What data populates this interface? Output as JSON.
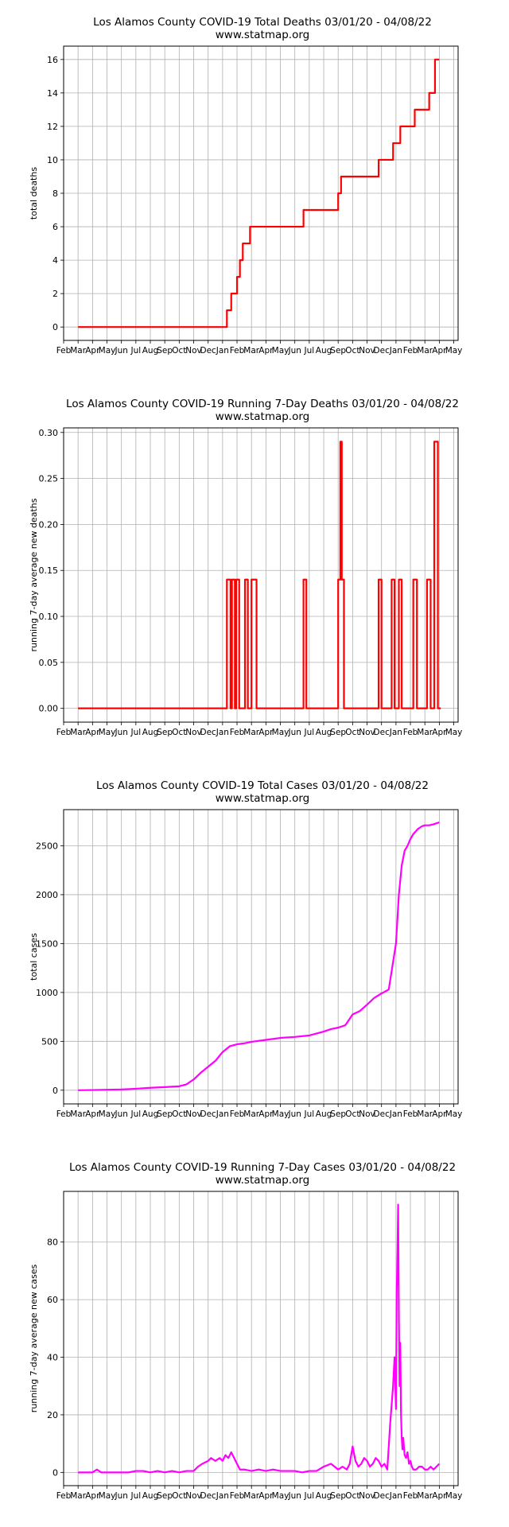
{
  "chart_data": [
    {
      "type": "line",
      "title": "Los Alamos County COVID-19 Total Deaths 03/01/20 - 04/08/22",
      "subtitle": "www.statmap.org",
      "xlabel": "",
      "ylabel": "total deaths",
      "grid": true,
      "color": "#ff0000",
      "month_labels": [
        "Feb",
        "Mar",
        "Apr",
        "May",
        "Jun",
        "Jul",
        "Aug",
        "Sep",
        "Oct",
        "Nov",
        "Dec",
        "Jan",
        "Feb",
        "Mar",
        "Apr",
        "May",
        "Jun",
        "Jul",
        "Aug",
        "Sep",
        "Oct",
        "Nov",
        "Dec",
        "Jan",
        "Feb",
        "Mar",
        "Apr",
        "May"
      ],
      "xlim": [
        0,
        27.3
      ],
      "ylim": [
        -0.8,
        16.8
      ],
      "yticks": [
        0,
        2,
        4,
        6,
        8,
        10,
        12,
        14,
        16
      ],
      "ytick_labels": [
        "0",
        "2",
        "4",
        "6",
        "8",
        "10",
        "12",
        "14",
        "16"
      ],
      "x": [
        1.0,
        11.3,
        11.3,
        11.6,
        11.6,
        12.0,
        12.0,
        12.2,
        12.2,
        12.4,
        12.4,
        12.9,
        12.9,
        13.3,
        13.3,
        16.6,
        16.6,
        19.0,
        19.0,
        19.2,
        19.2,
        21.8,
        21.8,
        22.8,
        22.8,
        23.3,
        23.3,
        24.3,
        24.3,
        25.3,
        25.3,
        25.7,
        25.7,
        26.0
      ],
      "y": [
        0,
        0,
        1,
        1,
        2,
        2,
        3,
        3,
        4,
        4,
        5,
        5,
        6,
        6,
        6,
        6,
        7,
        7,
        8,
        8,
        9,
        9,
        10,
        10,
        11,
        11,
        12,
        12,
        13,
        13,
        14,
        14,
        16,
        16
      ]
    },
    {
      "type": "line",
      "title": "Los Alamos County COVID-19 Running 7-Day Deaths 03/01/20 - 04/08/22",
      "subtitle": "www.statmap.org",
      "xlabel": "",
      "ylabel": "running 7-day average new deaths",
      "grid": true,
      "color": "#ff0000",
      "month_labels": [
        "Feb",
        "Mar",
        "Apr",
        "May",
        "Jun",
        "Jul",
        "Aug",
        "Sep",
        "Oct",
        "Nov",
        "Dec",
        "Jan",
        "Feb",
        "Mar",
        "Apr",
        "May",
        "Jun",
        "Jul",
        "Aug",
        "Sep",
        "Oct",
        "Nov",
        "Dec",
        "Jan",
        "Feb",
        "Mar",
        "Apr",
        "May"
      ],
      "xlim": [
        0,
        27.3
      ],
      "ylim": [
        -0.015,
        0.305
      ],
      "yticks": [
        0,
        0.05,
        0.1,
        0.15,
        0.2,
        0.25,
        0.3
      ],
      "ytick_labels": [
        "0.00",
        "0.05",
        "0.10",
        "0.15",
        "0.20",
        "0.25",
        "0.30"
      ],
      "x": [
        1.0,
        11.3,
        11.3,
        11.55,
        11.55,
        11.65,
        11.65,
        11.85,
        11.85,
        11.95,
        11.95,
        12.15,
        12.15,
        12.55,
        12.55,
        12.75,
        12.75,
        13.0,
        13.0,
        13.35,
        13.35,
        13.55,
        13.55,
        16.6,
        16.6,
        16.8,
        16.8,
        19.0,
        19.0,
        19.15,
        19.15,
        19.25,
        19.25,
        19.4,
        19.4,
        21.8,
        21.8,
        22.0,
        22.0,
        22.7,
        22.7,
        22.9,
        22.9,
        23.2,
        23.2,
        23.4,
        23.4,
        24.2,
        24.2,
        24.45,
        24.45,
        25.15,
        25.15,
        25.4,
        25.4,
        25.65,
        25.65,
        25.9,
        25.9,
        26.1
      ],
      "y": [
        0,
        0,
        0.14,
        0.14,
        0,
        0,
        0.14,
        0.14,
        0,
        0,
        0.14,
        0.14,
        0,
        0,
        0.14,
        0.14,
        0,
        0,
        0.14,
        0.14,
        0,
        0,
        0,
        0,
        0.14,
        0.14,
        0,
        0,
        0.14,
        0.14,
        0.29,
        0.29,
        0.14,
        0.14,
        0,
        0,
        0.14,
        0.14,
        0,
        0,
        0.14,
        0.14,
        0,
        0,
        0.14,
        0.14,
        0,
        0,
        0.14,
        0.14,
        0,
        0,
        0.14,
        0.14,
        0,
        0,
        0.29,
        0.29,
        0,
        0
      ]
    },
    {
      "type": "line",
      "title": "Los Alamos County COVID-19 Total Cases 03/01/20 - 04/08/22",
      "subtitle": "www.statmap.org",
      "xlabel": "",
      "ylabel": "total cases",
      "grid": true,
      "color": "#ff00ff",
      "month_labels": [
        "Feb",
        "Mar",
        "Apr",
        "May",
        "Jun",
        "Jul",
        "Aug",
        "Sep",
        "Oct",
        "Nov",
        "Dec",
        "Jan",
        "Feb",
        "Mar",
        "Apr",
        "May",
        "Jun",
        "Jul",
        "Aug",
        "Sep",
        "Oct",
        "Nov",
        "Dec",
        "Jan",
        "Feb",
        "Mar",
        "Apr",
        "May"
      ],
      "xlim": [
        0,
        27.3
      ],
      "ylim": [
        -140,
        2870
      ],
      "yticks": [
        0,
        500,
        1000,
        1500,
        2000,
        2500
      ],
      "ytick_labels": [
        "0",
        "500",
        "1000",
        "1500",
        "2000",
        "2500"
      ],
      "x": [
        1.0,
        2.0,
        3.0,
        4.0,
        5.0,
        6.0,
        7.0,
        8.0,
        8.5,
        9.0,
        9.5,
        10.0,
        10.5,
        11.0,
        11.5,
        12.0,
        12.5,
        13.0,
        14.0,
        15.0,
        16.0,
        17.0,
        18.0,
        18.5,
        19.0,
        19.5,
        20.0,
        20.5,
        21.0,
        21.5,
        22.0,
        22.5,
        23.0,
        23.2,
        23.4,
        23.6,
        23.8,
        24.0,
        24.2,
        24.5,
        24.8,
        25.0,
        25.3,
        25.6,
        25.8,
        26.0
      ],
      "y": [
        0,
        2,
        5,
        8,
        15,
        25,
        32,
        40,
        60,
        110,
        180,
        240,
        300,
        390,
        450,
        470,
        480,
        495,
        515,
        535,
        545,
        560,
        600,
        625,
        640,
        665,
        775,
        810,
        875,
        945,
        990,
        1030,
        1500,
        2000,
        2300,
        2450,
        2500,
        2570,
        2620,
        2670,
        2700,
        2710,
        2710,
        2720,
        2730,
        2740
      ]
    },
    {
      "type": "line",
      "title": "Los Alamos County COVID-19 Running 7-Day Cases 03/01/20 - 04/08/22",
      "subtitle": "www.statmap.org",
      "xlabel": "",
      "ylabel": "running 7-day average new cases",
      "grid": true,
      "color": "#ff00ff",
      "month_labels": [
        "Feb",
        "Mar",
        "Apr",
        "May",
        "Jun",
        "Jul",
        "Aug",
        "Sep",
        "Oct",
        "Nov",
        "Dec",
        "Jan",
        "Feb",
        "Mar",
        "Apr",
        "May",
        "Jun",
        "Jul",
        "Aug",
        "Sep",
        "Oct",
        "Nov",
        "Dec",
        "Jan",
        "Feb",
        "Mar",
        "Apr",
        "May"
      ],
      "xlim": [
        0,
        27.3
      ],
      "ylim": [
        -4.6,
        97.6
      ],
      "yticks": [
        0,
        20,
        40,
        60,
        80
      ],
      "ytick_labels": [
        "0",
        "20",
        "40",
        "60",
        "80"
      ],
      "x": [
        1.0,
        1.5,
        2.0,
        2.3,
        2.6,
        3.0,
        3.5,
        4.0,
        4.5,
        5.0,
        5.5,
        6.0,
        6.5,
        7.0,
        7.5,
        8.0,
        8.5,
        9.0,
        9.3,
        9.6,
        10.0,
        10.2,
        10.5,
        10.8,
        11.0,
        11.2,
        11.4,
        11.6,
        11.8,
        12.0,
        12.2,
        12.5,
        13.0,
        13.5,
        14.0,
        14.5,
        15.0,
        15.5,
        16.0,
        16.5,
        17.0,
        17.5,
        18.0,
        18.5,
        19.0,
        19.3,
        19.6,
        19.8,
        20.0,
        20.2,
        20.4,
        20.6,
        20.8,
        21.0,
        21.2,
        21.4,
        21.6,
        21.8,
        22.0,
        22.2,
        22.4,
        22.6,
        22.8,
        22.9,
        23.0,
        23.05,
        23.1,
        23.15,
        23.2,
        23.25,
        23.3,
        23.35,
        23.4,
        23.45,
        23.5,
        23.6,
        23.7,
        23.8,
        23.9,
        24.0,
        24.1,
        24.2,
        24.4,
        24.6,
        24.8,
        25.0,
        25.2,
        25.4,
        25.6,
        25.8,
        26.0
      ],
      "y": [
        0,
        0,
        0,
        1,
        0,
        0,
        0,
        0,
        0,
        0.5,
        0.5,
        0,
        0.5,
        0,
        0.5,
        0,
        0.5,
        0.5,
        2,
        3,
        4,
        5,
        4,
        5,
        4,
        6,
        5,
        7,
        5,
        3,
        1,
        1,
        0.5,
        1,
        0.5,
        1,
        0.5,
        0.5,
        0.5,
        0,
        0.5,
        0.5,
        2,
        3,
        1,
        2,
        1,
        3,
        9,
        4,
        2,
        3,
        5,
        4,
        2,
        3,
        5,
        4,
        2,
        3,
        1,
        17,
        30,
        40,
        22,
        62,
        75,
        93,
        55,
        30,
        45,
        20,
        12,
        8,
        12,
        6,
        5,
        7,
        3,
        4,
        2,
        1,
        1,
        2,
        2,
        1,
        1,
        2,
        1,
        2,
        3
      ]
    }
  ]
}
